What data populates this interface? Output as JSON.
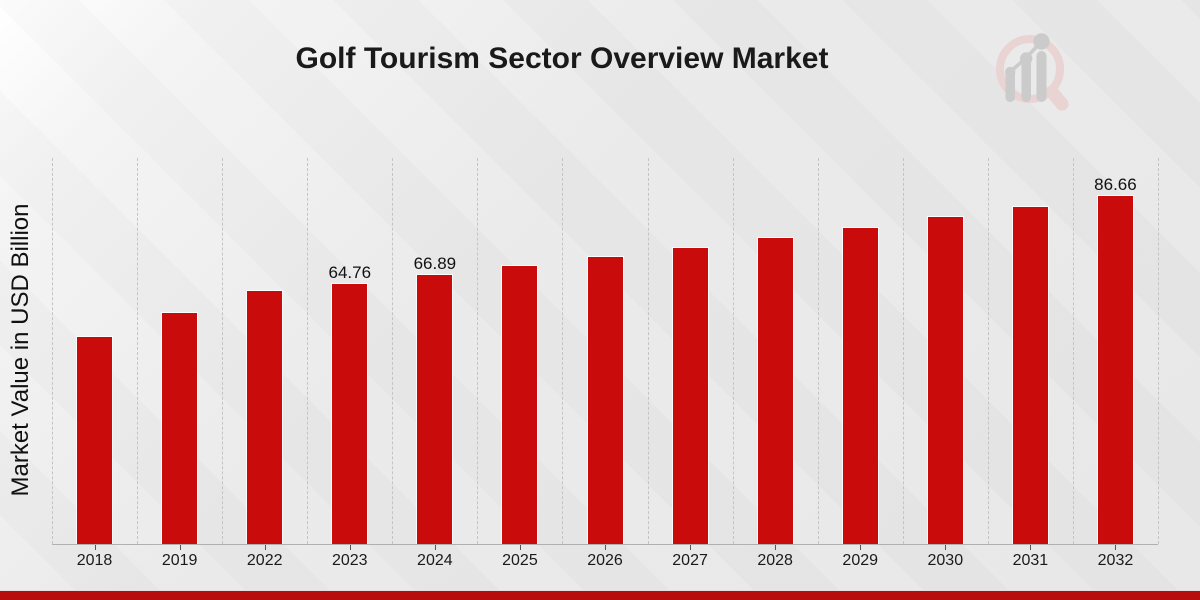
{
  "page": {
    "title": "Golf Tourism Sector Overview Market"
  },
  "colors": {
    "bar": "#c90b0c",
    "bottom_strip": "#b70d0d",
    "text": "#1a1a1a",
    "gridline": "#c4c4c4",
    "axis_line": "#b0b0b0",
    "watermark_ring": "#e9d3d3",
    "watermark_gray": "#cbcbcb"
  },
  "watermark": {
    "icon": "magnifier-bar-growth-logo"
  },
  "chart_data": {
    "type": "bar",
    "title": "Golf Tourism Sector Overview Market",
    "xlabel": "",
    "ylabel": "Market Value in USD Billion",
    "categories": [
      "2018",
      "2019",
      "2022",
      "2023",
      "2024",
      "2025",
      "2026",
      "2027",
      "2028",
      "2029",
      "2030",
      "2031",
      "2032"
    ],
    "values": [
      51.5,
      57.4,
      62.8,
      64.76,
      66.89,
      69.1,
      71.3,
      73.7,
      76.2,
      78.7,
      81.3,
      83.9,
      86.66
    ],
    "point_labels": {
      "2023": "64.76",
      "2024": "66.89",
      "2032": "86.66"
    },
    "ylim": [
      0,
      96
    ],
    "grid": "vertical-dashed",
    "legend": "none",
    "bar_color": "#c90b0c",
    "units": "USD Billion"
  }
}
